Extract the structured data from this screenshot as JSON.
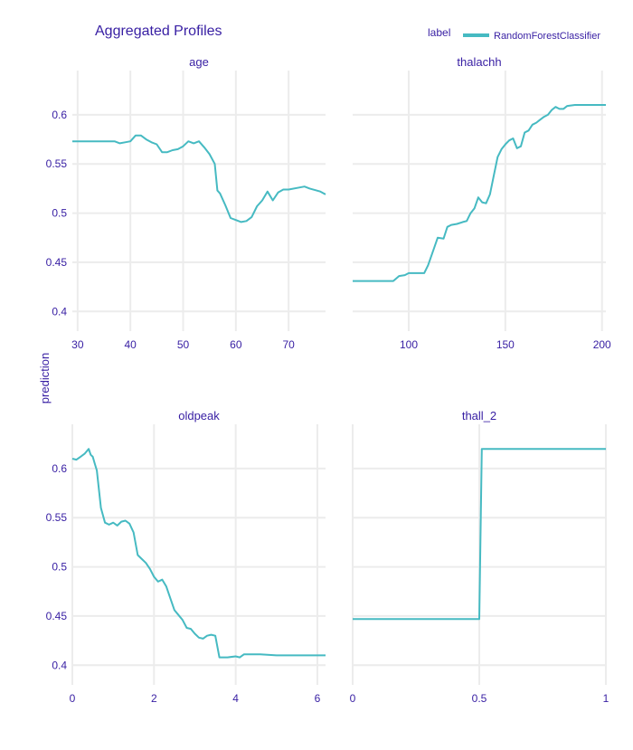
{
  "chart_title": "Aggregated Profiles",
  "y_label": "prediction",
  "legend": {
    "title": "label",
    "items": [
      {
        "name": "RandomForestClassifier",
        "color": "#46bac2"
      }
    ]
  },
  "chart_data": [
    {
      "type": "line",
      "subtitle": "age",
      "xlim": [
        29,
        77
      ],
      "ylim": [
        0.38,
        0.645
      ],
      "xticks": [
        30,
        40,
        50,
        60,
        70
      ],
      "yticks": [
        0.4,
        0.45,
        0.5,
        0.55,
        0.6
      ],
      "series": [
        {
          "name": "RandomForestClassifier",
          "color": "#46bac2",
          "x": [
            29,
            32,
            35,
            37,
            38,
            39,
            40,
            41,
            42,
            43,
            44,
            45,
            46,
            47,
            48,
            49,
            50,
            51,
            52,
            53,
            54,
            55,
            56,
            56.5,
            57,
            58,
            59,
            60,
            61,
            62,
            63,
            64,
            65,
            66,
            67,
            68,
            69,
            70,
            72,
            73,
            74,
            76,
            77
          ],
          "y": [
            0.573,
            0.573,
            0.573,
            0.573,
            0.571,
            0.572,
            0.573,
            0.579,
            0.579,
            0.575,
            0.572,
            0.57,
            0.562,
            0.562,
            0.564,
            0.565,
            0.568,
            0.573,
            0.571,
            0.573,
            0.567,
            0.56,
            0.55,
            0.523,
            0.52,
            0.508,
            0.495,
            0.493,
            0.491,
            0.492,
            0.496,
            0.507,
            0.513,
            0.522,
            0.513,
            0.521,
            0.524,
            0.524,
            0.526,
            0.527,
            0.525,
            0.522,
            0.519
          ]
        }
      ]
    },
    {
      "type": "line",
      "subtitle": "thalachh",
      "xlim": [
        71,
        202
      ],
      "ylim": [
        0.38,
        0.645
      ],
      "xticks": [
        100,
        150,
        200
      ],
      "yticks": [
        0.4,
        0.45,
        0.5,
        0.55,
        0.6
      ],
      "series": [
        {
          "name": "RandomForestClassifier",
          "color": "#46bac2",
          "x": [
            71,
            80,
            90,
            92,
            95,
            98,
            100,
            105,
            108,
            110,
            112,
            115,
            118,
            120,
            122,
            125,
            128,
            130,
            132,
            134,
            136,
            138,
            140,
            142,
            144,
            146,
            148,
            150,
            152,
            154,
            156,
            158,
            160,
            162,
            164,
            166,
            168,
            170,
            172,
            174,
            176,
            178,
            180,
            182,
            186,
            190,
            195,
            202
          ],
          "y": [
            0.431,
            0.431,
            0.431,
            0.431,
            0.436,
            0.437,
            0.439,
            0.439,
            0.439,
            0.447,
            0.458,
            0.475,
            0.474,
            0.486,
            0.488,
            0.489,
            0.491,
            0.492,
            0.5,
            0.505,
            0.516,
            0.511,
            0.51,
            0.519,
            0.538,
            0.557,
            0.565,
            0.57,
            0.574,
            0.576,
            0.566,
            0.568,
            0.582,
            0.584,
            0.59,
            0.592,
            0.595,
            0.598,
            0.6,
            0.605,
            0.608,
            0.606,
            0.606,
            0.609,
            0.61,
            0.61,
            0.61,
            0.61
          ]
        }
      ]
    },
    {
      "type": "line",
      "subtitle": "oldpeak",
      "xlim": [
        0,
        6.2
      ],
      "ylim": [
        0.38,
        0.645
      ],
      "xticks": [
        0,
        2,
        4,
        6
      ],
      "yticks": [
        0.4,
        0.45,
        0.5,
        0.55,
        0.6
      ],
      "series": [
        {
          "name": "RandomForestClassifier",
          "color": "#46bac2",
          "x": [
            0,
            0.1,
            0.2,
            0.3,
            0.4,
            0.45,
            0.5,
            0.55,
            0.6,
            0.7,
            0.8,
            0.9,
            1.0,
            1.1,
            1.2,
            1.3,
            1.4,
            1.5,
            1.6,
            1.7,
            1.8,
            1.9,
            2.0,
            2.1,
            2.2,
            2.3,
            2.4,
            2.5,
            2.6,
            2.7,
            2.8,
            2.9,
            3.0,
            3.1,
            3.2,
            3.3,
            3.4,
            3.5,
            3.6,
            3.8,
            4.0,
            4.1,
            4.2,
            4.4,
            4.6,
            5.0,
            5.5,
            6.0,
            6.2
          ],
          "y": [
            0.61,
            0.609,
            0.612,
            0.615,
            0.62,
            0.614,
            0.612,
            0.605,
            0.598,
            0.56,
            0.545,
            0.543,
            0.545,
            0.542,
            0.546,
            0.547,
            0.544,
            0.535,
            0.512,
            0.508,
            0.504,
            0.498,
            0.49,
            0.485,
            0.487,
            0.48,
            0.468,
            0.456,
            0.451,
            0.446,
            0.438,
            0.437,
            0.432,
            0.428,
            0.427,
            0.43,
            0.431,
            0.43,
            0.408,
            0.408,
            0.409,
            0.408,
            0.411,
            0.411,
            0.411,
            0.41,
            0.41,
            0.41,
            0.41
          ]
        }
      ]
    },
    {
      "type": "line",
      "subtitle": "thall_2",
      "xlim": [
        0,
        1
      ],
      "ylim": [
        0.38,
        0.645
      ],
      "xticks": [
        0,
        0.5,
        1
      ],
      "yticks": [
        0.4,
        0.45,
        0.5,
        0.55,
        0.6
      ],
      "series": [
        {
          "name": "RandomForestClassifier",
          "color": "#46bac2",
          "x": [
            0,
            0.5,
            0.51,
            1
          ],
          "y": [
            0.447,
            0.447,
            0.62,
            0.62
          ]
        }
      ]
    }
  ]
}
